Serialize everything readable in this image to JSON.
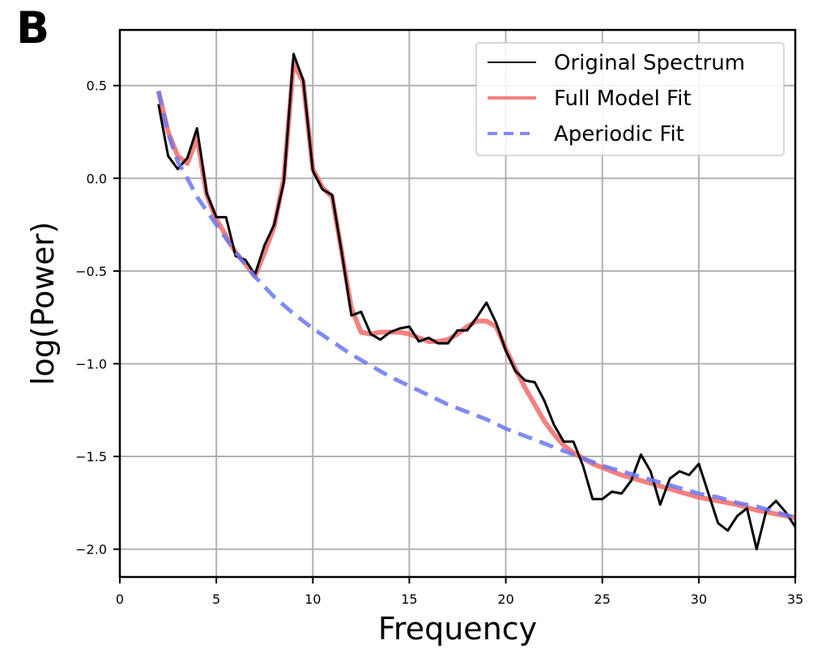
{
  "panel_label": "B",
  "chart_data": {
    "type": "line",
    "title": "",
    "xlabel": "Frequency",
    "ylabel": "log(Power)",
    "xlim": [
      0,
      35
    ],
    "ylim": [
      -2.15,
      0.8
    ],
    "xticks": [
      0,
      5,
      10,
      15,
      20,
      25,
      30,
      35
    ],
    "xtick_labels": [
      "0",
      "5",
      "10",
      "15",
      "20",
      "25",
      "30",
      "35"
    ],
    "yticks": [
      0.5,
      0.0,
      -0.5,
      -1.0,
      -1.5,
      -2.0
    ],
    "ytick_labels": [
      "0.5",
      "0.0",
      "−0.5",
      "−1.0",
      "−1.5",
      "−2.0"
    ],
    "grid": true,
    "legend_position": "top-right",
    "series": [
      {
        "name": "Original Spectrum",
        "color": "#000000",
        "style": "solid",
        "x": [
          2,
          2.5,
          3,
          3.5,
          4,
          4.5,
          5,
          5.5,
          6,
          6.5,
          7,
          7.5,
          8,
          8.5,
          9,
          9.5,
          10,
          10.5,
          11,
          11.5,
          12,
          12.5,
          13,
          13.5,
          14,
          14.5,
          15,
          15.5,
          16,
          16.5,
          17,
          17.5,
          18,
          18.5,
          19,
          19.5,
          20,
          20.5,
          21,
          21.5,
          22,
          22.5,
          23,
          23.5,
          24,
          24.5,
          25,
          25.5,
          26,
          26.5,
          27,
          27.5,
          28,
          28.5,
          29,
          29.5,
          30,
          30.5,
          31,
          31.5,
          32,
          32.5,
          33,
          33.5,
          34,
          34.5,
          35
        ],
        "y": [
          0.4,
          0.12,
          0.05,
          0.11,
          0.27,
          -0.08,
          -0.21,
          -0.21,
          -0.42,
          -0.44,
          -0.52,
          -0.36,
          -0.25,
          -0.02,
          0.67,
          0.53,
          0.04,
          -0.06,
          -0.09,
          -0.4,
          -0.74,
          -0.72,
          -0.84,
          -0.87,
          -0.83,
          -0.81,
          -0.8,
          -0.88,
          -0.86,
          -0.89,
          -0.89,
          -0.82,
          -0.82,
          -0.75,
          -0.67,
          -0.78,
          -0.93,
          -1.04,
          -1.09,
          -1.1,
          -1.2,
          -1.33,
          -1.42,
          -1.42,
          -1.55,
          -1.73,
          -1.73,
          -1.69,
          -1.7,
          -1.63,
          -1.49,
          -1.58,
          -1.76,
          -1.62,
          -1.58,
          -1.6,
          -1.54,
          -1.7,
          -1.86,
          -1.9,
          -1.82,
          -1.78,
          -2.0,
          -1.79,
          -1.74,
          -1.8,
          -1.88
        ]
      },
      {
        "name": "Full Model Fit",
        "color": "#f26a6a",
        "style": "solid",
        "x": [
          2,
          2.5,
          3,
          3.5,
          4,
          4.5,
          5,
          5.5,
          6,
          6.5,
          7,
          7.5,
          8,
          8.5,
          9,
          9.5,
          10,
          10.5,
          11,
          11.5,
          12,
          12.5,
          13,
          13.5,
          14,
          14.5,
          15,
          15.5,
          16,
          16.5,
          17,
          17.5,
          18,
          18.5,
          19,
          19.5,
          20,
          20.5,
          21,
          21.5,
          22,
          22.5,
          23,
          23.5,
          24,
          24.5,
          25,
          26,
          27,
          28,
          29,
          30,
          31,
          32,
          33,
          34,
          35
        ],
        "y": [
          0.47,
          0.25,
          0.12,
          0.08,
          0.22,
          -0.09,
          -0.22,
          -0.31,
          -0.4,
          -0.46,
          -0.53,
          -0.4,
          -0.26,
          0.0,
          0.62,
          0.52,
          0.05,
          -0.05,
          -0.1,
          -0.4,
          -0.7,
          -0.83,
          -0.84,
          -0.83,
          -0.83,
          -0.83,
          -0.84,
          -0.86,
          -0.88,
          -0.88,
          -0.87,
          -0.84,
          -0.8,
          -0.77,
          -0.77,
          -0.8,
          -0.92,
          -1.03,
          -1.13,
          -1.22,
          -1.31,
          -1.38,
          -1.44,
          -1.48,
          -1.51,
          -1.54,
          -1.56,
          -1.6,
          -1.63,
          -1.66,
          -1.69,
          -1.72,
          -1.74,
          -1.76,
          -1.79,
          -1.81,
          -1.83
        ]
      },
      {
        "name": "Aperiodic Fit",
        "color": "#6b77f0",
        "style": "dashed",
        "x": [
          2,
          2.5,
          3,
          3.5,
          4,
          5,
          6,
          7,
          8,
          9,
          10,
          11,
          12,
          13,
          14,
          15,
          16,
          17,
          18,
          19,
          20,
          21,
          22,
          23,
          24,
          25,
          26,
          27,
          28,
          29,
          30,
          31,
          32,
          33,
          34,
          35
        ],
        "y": [
          0.47,
          0.24,
          0.09,
          0.0,
          -0.1,
          -0.25,
          -0.4,
          -0.53,
          -0.64,
          -0.73,
          -0.81,
          -0.88,
          -0.95,
          -1.01,
          -1.07,
          -1.12,
          -1.17,
          -1.22,
          -1.26,
          -1.3,
          -1.35,
          -1.39,
          -1.43,
          -1.47,
          -1.51,
          -1.55,
          -1.58,
          -1.61,
          -1.64,
          -1.67,
          -1.7,
          -1.72,
          -1.75,
          -1.77,
          -1.8,
          -1.83
        ]
      }
    ]
  }
}
